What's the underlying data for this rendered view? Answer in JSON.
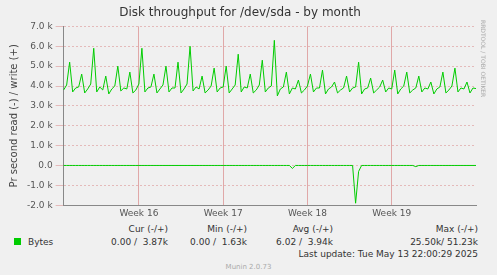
{
  "chart_data": {
    "type": "line",
    "title": "Disk throughput for /dev/sda - by month",
    "y_label": "Pr second read (-) / write (+)",
    "categories": [
      null,
      null,
      null,
      null,
      null,
      null,
      null,
      null,
      null,
      null,
      null,
      null,
      null,
      null,
      null,
      null,
      null,
      null,
      null,
      null,
      null,
      null,
      null,
      null,
      null,
      "Week 16",
      null,
      null,
      null,
      null,
      null,
      null,
      null,
      null,
      null,
      null,
      null,
      null,
      null,
      null,
      null,
      null,
      null,
      null,
      null,
      null,
      null,
      null,
      null,
      null,
      null,
      null,
      null,
      "Week 17",
      null,
      null,
      null,
      null,
      null,
      null,
      null,
      null,
      null,
      null,
      null,
      null,
      null,
      null,
      null,
      null,
      null,
      null,
      null,
      null,
      null,
      null,
      null,
      null,
      null,
      null,
      null,
      "Week 18",
      null,
      null,
      null,
      null,
      null,
      null,
      null,
      null,
      null,
      null,
      null,
      null,
      null,
      null,
      null,
      null,
      null,
      null,
      null,
      null,
      null,
      null,
      null,
      null,
      null,
      null,
      null,
      "Week 19",
      null,
      null,
      null,
      null,
      null,
      null,
      null,
      null,
      null,
      null,
      null,
      null,
      null,
      null,
      null,
      null,
      null,
      null,
      null,
      null,
      null,
      null,
      null,
      null,
      null,
      null,
      null,
      null
    ],
    "series": [
      {
        "name": "Bytes",
        "color": "#00cc00",
        "values": [
          3800,
          4050,
          5200,
          3700,
          3900,
          3950,
          4600,
          3650,
          3850,
          4100,
          5900,
          3700,
          3950,
          3800,
          4500,
          3600,
          3850,
          4000,
          5000,
          3750,
          3900,
          3850,
          4700,
          3650,
          3800,
          4100,
          5900,
          3700,
          3900,
          3950,
          4600,
          3650,
          3850,
          4050,
          5000,
          3700,
          3900,
          3900,
          5200,
          3650,
          3850,
          4100,
          6000,
          3750,
          3950,
          3850,
          4500,
          3650,
          3800,
          4000,
          4900,
          3700,
          3900,
          3950,
          5000,
          3650,
          3850,
          4050,
          5600,
          3700,
          3950,
          3900,
          4600,
          3650,
          3800,
          4050,
          5300,
          3700,
          3900,
          4000,
          6300,
          3500,
          3850,
          3950,
          4700,
          3600,
          3900,
          3850,
          4300,
          3650,
          3800,
          4000,
          4600,
          3700,
          3900,
          3900,
          4800,
          3600,
          3850,
          3950,
          4200,
          3650,
          3800,
          3900,
          4500,
          3700,
          3900,
          3950,
          5200,
          3600,
          3850,
          3900,
          4400,
          3650,
          3800,
          3950,
          4300,
          3700,
          3900,
          3850,
          4800,
          3600,
          3850,
          4000,
          4700,
          3650,
          3800,
          3900,
          4500,
          3700,
          3900,
          3850,
          4200,
          3600,
          3850,
          3950,
          4700,
          3650,
          3800,
          4000,
          4900,
          3700,
          3900,
          3850,
          4200,
          3650,
          3900,
          3870
        ],
        "read": [
          0,
          0,
          0,
          0,
          0,
          0,
          0,
          0,
          0,
          0,
          0,
          0,
          0,
          0,
          0,
          0,
          0,
          0,
          0,
          0,
          0,
          0,
          0,
          0,
          0,
          0,
          0,
          0,
          0,
          0,
          0,
          0,
          0,
          0,
          0,
          0,
          0,
          0,
          0,
          0,
          0,
          0,
          0,
          0,
          0,
          0,
          0,
          0,
          0,
          0,
          0,
          0,
          0,
          0,
          0,
          0,
          0,
          0,
          0,
          0,
          0,
          0,
          0,
          0,
          0,
          0,
          0,
          0,
          0,
          0,
          0,
          0,
          0,
          0,
          0,
          0,
          -150,
          0,
          0,
          0,
          0,
          0,
          0,
          0,
          0,
          0,
          0,
          0,
          0,
          0,
          0,
          0,
          0,
          0,
          0,
          0,
          0,
          -1900,
          -300,
          0,
          0,
          0,
          0,
          0,
          0,
          0,
          0,
          0,
          0,
          0,
          0,
          0,
          0,
          0,
          0,
          0,
          0,
          -60,
          0,
          0,
          0,
          0,
          0,
          0,
          0,
          0,
          0,
          0,
          0,
          0,
          0,
          0,
          0,
          0,
          0,
          0,
          0,
          0
        ]
      }
    ],
    "ylim": [
      -2000,
      7000
    ],
    "yticks": [
      {
        "value": -2000,
        "label": "-2.0 k"
      },
      {
        "value": -1000,
        "label": "-1.0 k"
      },
      {
        "value": 0,
        "label": "0.0"
      },
      {
        "value": 1000,
        "label": "1.0 k"
      },
      {
        "value": 2000,
        "label": "2.0 k"
      },
      {
        "value": 3000,
        "label": "3.0 k"
      },
      {
        "value": 4000,
        "label": "4.0 k"
      },
      {
        "value": 5000,
        "label": "5.0 k"
      },
      {
        "value": 6000,
        "label": "6.0 k"
      },
      {
        "value": 7000,
        "label": "7.0 k"
      }
    ],
    "grid": true,
    "legend_table": {
      "columns": [
        "Cur (-/+)",
        "Min (-/+)",
        "Avg (-/+)",
        "Max (-/+)"
      ],
      "rows": [
        {
          "name": "Bytes",
          "cells": [
            "0.00 /  3.87k",
            "0.00 /  1.63k",
            "6.02 /  3.94k",
            "25.50k/ 51.23k"
          ]
        }
      ]
    },
    "footer": [
      "Last update: Tue May 13 22:00:29 2025",
      "Munin 2.0.73"
    ],
    "side_text": "RRDTOOL / TOBI OETIKER"
  }
}
